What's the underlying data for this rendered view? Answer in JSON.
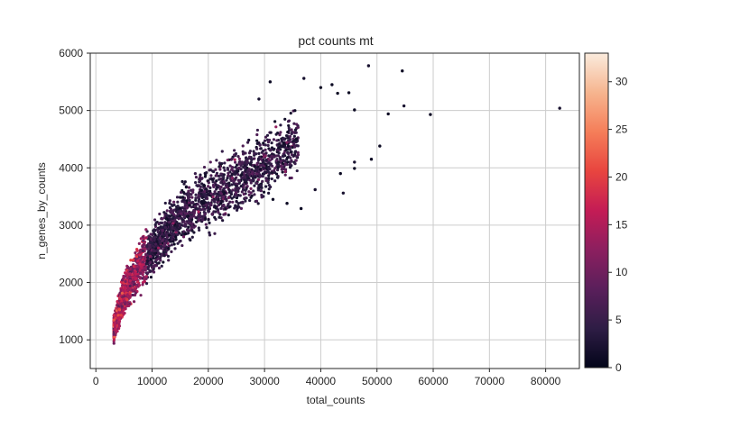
{
  "chart_data": {
    "type": "scatter",
    "title": "pct counts mt",
    "xlabel": "total_counts",
    "ylabel": "n_genes_by_counts",
    "xlim": [
      -1000,
      86000
    ],
    "ylim": [
      500,
      6000
    ],
    "xticks": [
      0,
      10000,
      20000,
      30000,
      40000,
      50000,
      60000,
      70000,
      80000
    ],
    "yticks": [
      1000,
      2000,
      3000,
      4000,
      5000,
      6000
    ],
    "grid": true,
    "colorbar": {
      "label": "",
      "min": 0,
      "max": 33,
      "ticks": [
        0,
        5,
        10,
        15,
        20,
        25,
        30
      ],
      "colormap": "rocket",
      "stops": [
        "#03051a",
        "#2e1d45",
        "#5a1f5b",
        "#8c1f5f",
        "#c41c55",
        "#e8453f",
        "#f57e59",
        "#f6b58f",
        "#faebdd"
      ]
    },
    "density_band": {
      "description_points": [
        {
          "x": 3200,
          "y_low": 850,
          "y_high": 1500
        },
        {
          "x": 5000,
          "y_low": 1300,
          "y_high": 2300
        },
        {
          "x": 8000,
          "y_low": 1750,
          "y_high": 2900
        },
        {
          "x": 12000,
          "y_low": 2200,
          "y_high": 3450
        },
        {
          "x": 16000,
          "y_low": 2550,
          "y_high": 3900
        },
        {
          "x": 20000,
          "y_low": 2750,
          "y_high": 4250
        },
        {
          "x": 25000,
          "y_low": 3000,
          "y_high": 4500
        },
        {
          "x": 30000,
          "y_low": 3300,
          "y_high": 4800
        },
        {
          "x": 36000,
          "y_low": 3700,
          "y_high": 5200
        }
      ]
    },
    "outliers": [
      {
        "x": 48500,
        "y": 5780,
        "c": 2
      },
      {
        "x": 54500,
        "y": 5690,
        "c": 1
      },
      {
        "x": 82500,
        "y": 5040,
        "c": 2
      },
      {
        "x": 59500,
        "y": 4930,
        "c": 1
      },
      {
        "x": 52000,
        "y": 4940,
        "c": 1
      },
      {
        "x": 54800,
        "y": 5080,
        "c": 2
      },
      {
        "x": 50500,
        "y": 4380,
        "c": 1
      },
      {
        "x": 49000,
        "y": 4150,
        "c": 1
      },
      {
        "x": 46000,
        "y": 4100,
        "c": 2
      },
      {
        "x": 46000,
        "y": 3990,
        "c": 1
      },
      {
        "x": 43500,
        "y": 3900,
        "c": 1
      },
      {
        "x": 44000,
        "y": 3560,
        "c": 2
      },
      {
        "x": 45000,
        "y": 5310,
        "c": 1
      },
      {
        "x": 43000,
        "y": 5300,
        "c": 1
      },
      {
        "x": 37000,
        "y": 5560,
        "c": 2
      },
      {
        "x": 40000,
        "y": 5400,
        "c": 1
      },
      {
        "x": 42000,
        "y": 5450,
        "c": 1
      },
      {
        "x": 46000,
        "y": 5010,
        "c": 1
      },
      {
        "x": 36500,
        "y": 3290,
        "c": 1
      },
      {
        "x": 39000,
        "y": 3620,
        "c": 2
      },
      {
        "x": 34000,
        "y": 3380,
        "c": 1
      },
      {
        "x": 31500,
        "y": 3450,
        "c": 1
      },
      {
        "x": 29000,
        "y": 5200,
        "c": 2
      },
      {
        "x": 31000,
        "y": 5500,
        "c": 1
      }
    ]
  }
}
